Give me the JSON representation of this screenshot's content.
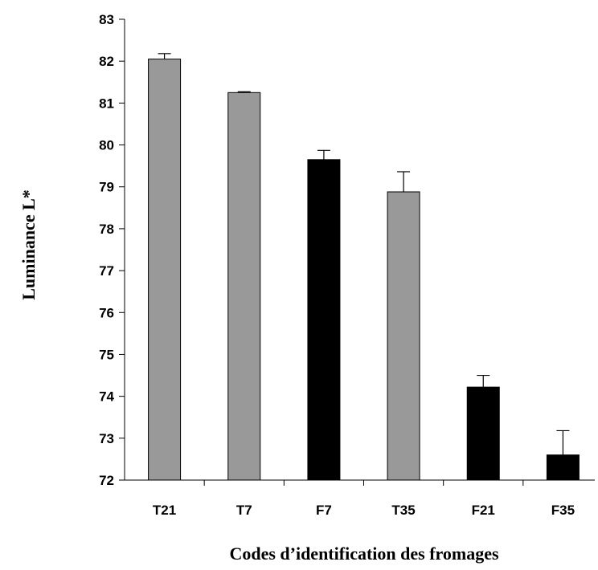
{
  "chart_data": {
    "type": "bar",
    "categories": [
      "T21",
      "T7",
      "F7",
      "T35",
      "F21",
      "F35"
    ],
    "values": [
      82.05,
      81.25,
      79.65,
      78.88,
      74.22,
      72.6
    ],
    "errors": [
      0.13,
      0.02,
      0.22,
      0.48,
      0.28,
      0.58
    ],
    "bar_colors": [
      "#999999",
      "#999999",
      "#000000",
      "#999999",
      "#000000",
      "#000000"
    ],
    "ylim": [
      72,
      83
    ],
    "yticks": [
      72,
      73,
      74,
      75,
      76,
      77,
      78,
      79,
      80,
      81,
      82,
      83
    ],
    "xlabel": "Codes d’identification des fromages",
    "ylabel": "Luminance L*",
    "title": "",
    "legend": "none",
    "grid": false
  }
}
